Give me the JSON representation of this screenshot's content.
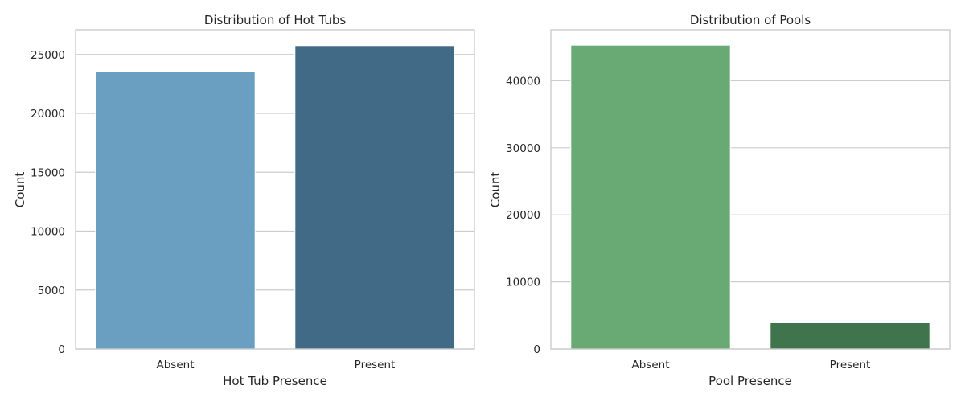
{
  "chart_data": [
    {
      "type": "bar",
      "title": "Distribution of Hot Tubs",
      "xlabel": "Hot Tub Presence",
      "ylabel": "Count",
      "categories": [
        "Absent",
        "Present"
      ],
      "values": [
        23550,
        25750
      ],
      "ylim": [
        0,
        27100
      ],
      "yticks": [
        0,
        5000,
        10000,
        15000,
        20000,
        25000
      ],
      "ytick_labels": [
        "0",
        "5000",
        "10000",
        "15000",
        "20000",
        "25000"
      ],
      "colors": [
        "#6a9fc2",
        "#416a87"
      ],
      "grid": "horizontal"
    },
    {
      "type": "bar",
      "title": "Distribution of Pools",
      "xlabel": "Pool Presence",
      "ylabel": "Count",
      "categories": [
        "Absent",
        "Present"
      ],
      "values": [
        45300,
        3900
      ],
      "ylim": [
        0,
        47600
      ],
      "yticks": [
        0,
        10000,
        20000,
        30000,
        40000
      ],
      "ytick_labels": [
        "0",
        "10000",
        "20000",
        "30000",
        "40000"
      ],
      "colors": [
        "#69aa74",
        "#3f744c"
      ],
      "grid": "horizontal"
    }
  ]
}
